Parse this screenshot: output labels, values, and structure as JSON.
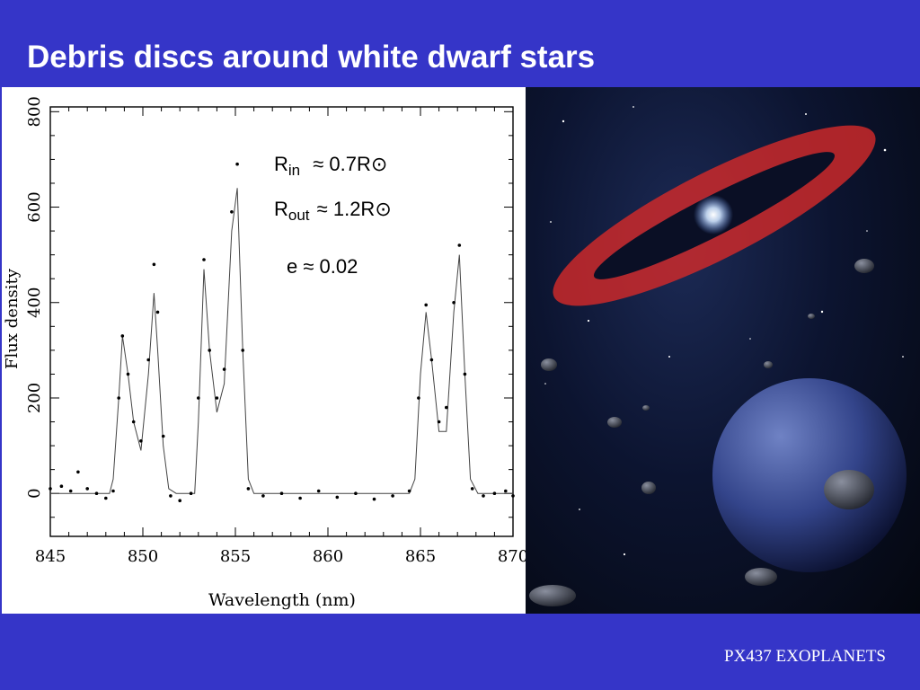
{
  "slide": {
    "title": "Debris discs around white dwarf stars",
    "footer": "PX437 EXOPLANETS"
  },
  "annotations": {
    "r_in_base": "R",
    "r_in_sub": "in",
    "r_in_value": "≈ 0.7R⊙",
    "r_out_base": "R",
    "r_out_sub": "out",
    "r_out_value": "≈ 1.2R⊙",
    "eccentricity": "e ≈ 0.02"
  },
  "chart_data": {
    "type": "line",
    "xlabel": "Wavelength (nm)",
    "ylabel": "Flux density",
    "xlim": [
      845,
      870
    ],
    "ylim": [
      -90,
      810
    ],
    "x_ticks": [
      845,
      850,
      855,
      860,
      865,
      870
    ],
    "y_ticks": [
      0,
      200,
      400,
      600,
      800
    ],
    "x_tick_labels": [
      "845",
      "850",
      "855",
      "860",
      "865",
      "870"
    ],
    "y_tick_labels": [
      "0",
      "200",
      "400",
      "600",
      "800"
    ],
    "series": [
      {
        "style": "points",
        "x": [
          845.0,
          845.6,
          846.1,
          846.5,
          847.0,
          847.5,
          848.0,
          848.4,
          848.7,
          848.9,
          849.2,
          849.5,
          849.9,
          850.3,
          850.6,
          850.8,
          851.1,
          851.5,
          852.0,
          852.6,
          853.0,
          853.3,
          853.6,
          854.0,
          854.4,
          854.8,
          855.1,
          855.4,
          855.7,
          856.5,
          857.5,
          858.5,
          859.5,
          860.5,
          861.5,
          862.5,
          863.5,
          864.4,
          864.9,
          865.3,
          865.6,
          866.0,
          866.4,
          866.8,
          867.1,
          867.4,
          867.8,
          868.4,
          869.0,
          869.6,
          870.0
        ],
        "y": [
          10,
          15,
          5,
          45,
          10,
          0,
          -10,
          5,
          200,
          330,
          250,
          150,
          110,
          280,
          480,
          380,
          120,
          -5,
          -15,
          0,
          200,
          490,
          300,
          200,
          260,
          590,
          690,
          300,
          10,
          -5,
          0,
          -10,
          5,
          -8,
          0,
          -12,
          -5,
          5,
          200,
          395,
          280,
          150,
          180,
          400,
          520,
          250,
          10,
          -5,
          0,
          5,
          -5
        ]
      },
      {
        "style": "line",
        "x": [
          845.0,
          848.2,
          848.4,
          848.7,
          848.9,
          849.2,
          849.5,
          849.9,
          850.3,
          850.6,
          850.8,
          851.1,
          851.4,
          851.8,
          852.8,
          853.0,
          853.3,
          853.6,
          854.0,
          854.4,
          854.8,
          855.1,
          855.4,
          855.7,
          856.0,
          864.4,
          864.7,
          865.0,
          865.3,
          865.6,
          866.0,
          866.4,
          866.8,
          867.1,
          867.4,
          867.7,
          868.1,
          870.0
        ],
        "y": [
          0,
          0,
          30,
          200,
          330,
          250,
          150,
          90,
          250,
          420,
          300,
          100,
          10,
          0,
          0,
          150,
          470,
          300,
          170,
          230,
          550,
          640,
          300,
          30,
          0,
          0,
          30,
          250,
          380,
          280,
          130,
          130,
          380,
          500,
          250,
          30,
          0,
          0
        ]
      }
    ]
  }
}
